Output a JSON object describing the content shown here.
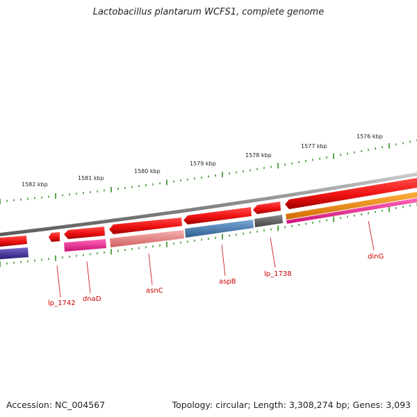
{
  "title": "Lactobacillus plantarum WCFS1, complete genome",
  "footer": {
    "accession": "Accession: NC_004567",
    "topology": "Topology: circular; Length: 3,308,274 bp; Genes: 3,093"
  },
  "kbp_ticks": [
    "1582 kbp",
    "1581 kbp",
    "1580 kbp",
    "1579 kbp",
    "1578 kbp",
    "1577 kbp",
    "1576 kbp"
  ],
  "gene_labels": [
    "lp_1742",
    "dnaD",
    "asnC",
    "aspB",
    "lp_1738",
    "dinG"
  ],
  "colors": {
    "backbone": "#888888",
    "cds": "#ee1111",
    "label": "#cc0000",
    "tick": "#2e8b1e",
    "dnaD_feature": "#ee2288",
    "asnC_feature": "#f08a8a",
    "aspB_feature": "#4a7fb5",
    "lp_1738_feature": "#666666",
    "dinG_feature_orange": "#ff8c00",
    "dinG_feature_magenta": "#ee2288",
    "left_feature": "#443399"
  }
}
